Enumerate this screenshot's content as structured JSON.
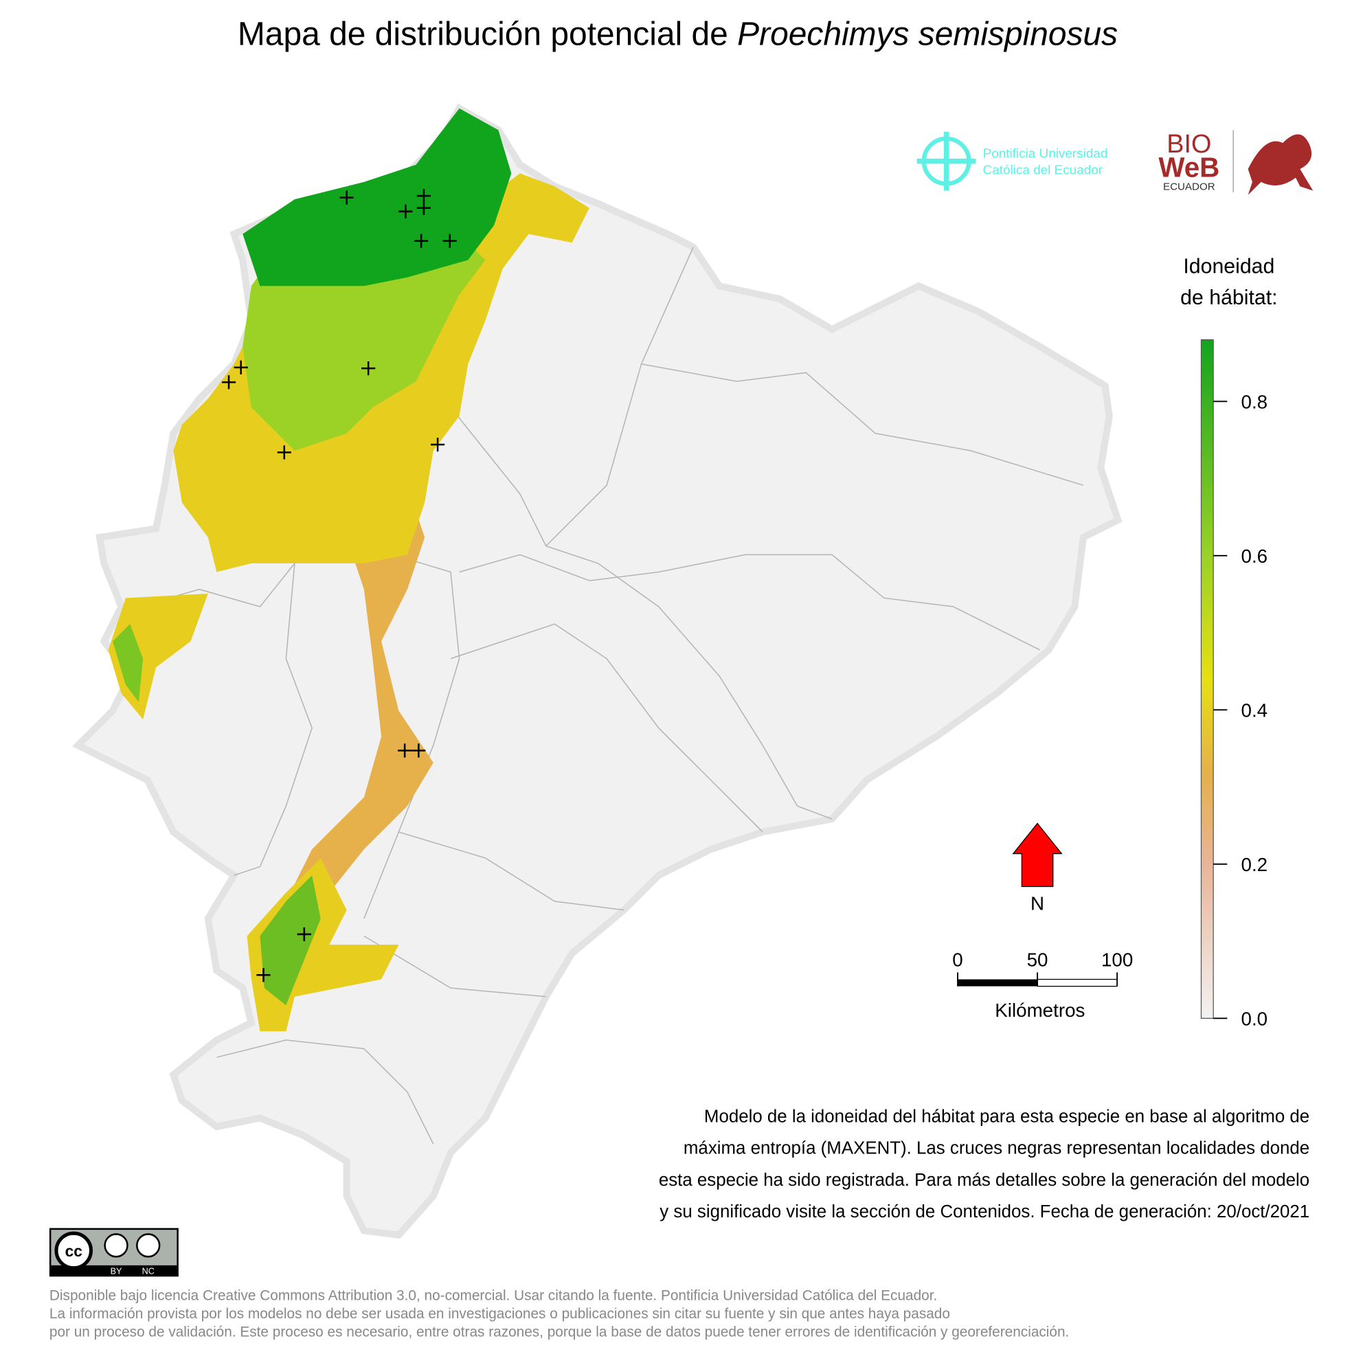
{
  "title": {
    "prefix": "Mapa de distribución potencial de",
    "species": "Proechimys semispinosus"
  },
  "logos": {
    "puce_line1": "Pontificia Universidad",
    "puce_line2": "Católica del Ecuador",
    "bio": "BIO",
    "web": "WeB",
    "ecuador": "ECUADOR"
  },
  "legend": {
    "title_line1": "Idoneidad",
    "title_line2": "de hábitat:",
    "lim": [
      0,
      0.88
    ],
    "ticks": [
      {
        "value": 0,
        "label": "0.0"
      },
      0.2,
      0.4,
      0.6,
      0.8
    ]
  },
  "north": "N",
  "scale_bar": {
    "ticks": [
      0,
      50,
      100
    ],
    "lim": [
      0,
      100
    ],
    "unit": "Kilómetros"
  },
  "description": [
    "Modelo de la idoneidad del hábitat para esta especie en base al algoritmo de",
    "máxima entropía (MAXENT). Las cruces negras representan localidades donde",
    "esta especie ha sido registrada. Para más detalles sobre la generación del modelo",
    "y su significado visite la sección de Contenidos. Fecha de generación: 20/oct/2021"
  ],
  "license_badge": {
    "cc": "cc",
    "by": "BY",
    "nc": "NC"
  },
  "license": [
    "Disponible bajo licencia Creative Commons Attribution 3.0, no-comercial. Usar citando la fuente. Pontificia Universidad Católica del Ecuador.",
    "La información provista por los modelos no debe ser usada en investigaciones o publicaciones sin citar su fuente y sin que antes haya pasado",
    "por un proceso de validación. Este proceso es necesario, entre otras razones, porque la base de datos puede tener errores de identificación y georeferenciación."
  ]
}
